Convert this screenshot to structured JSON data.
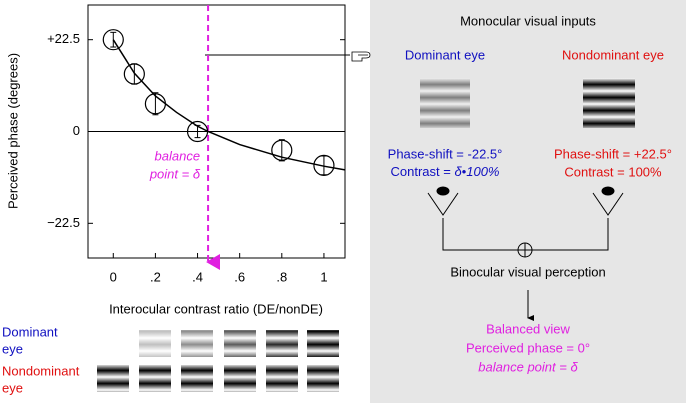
{
  "chart_data": {
    "type": "scatter",
    "ylabel": "Perceived phase (degrees)",
    "xlabel": "Interocular contrast ratio (DE/nonDE)",
    "x": [
      0,
      0.1,
      0.2,
      0.4,
      0.8,
      1
    ],
    "values": [
      22.5,
      14.1,
      6.8,
      0,
      -4.6,
      -8.3
    ],
    "errors": [
      1.8,
      2.5,
      2.7,
      1.5,
      2.6,
      2.3
    ],
    "fit": {
      "x": [
        0,
        0.1,
        0.2,
        0.3,
        0.4,
        0.45,
        0.6,
        0.8,
        1.0,
        1.1
      ],
      "values": [
        22.5,
        14.3,
        8.7,
        4.7,
        1.3,
        0,
        -3.2,
        -6.3,
        -8.5,
        -9.4
      ]
    },
    "balance_point": 0.45,
    "balance_label": [
      "balance",
      "point = δ"
    ],
    "xlim": [
      -0.12,
      1.1
    ],
    "ylim": [
      -31,
      31
    ],
    "xticks": [
      0,
      {
        "value": 0.2,
        "label": ".2"
      },
      {
        "value": 0.4,
        "label": ".4"
      },
      {
        "value": 0.6,
        "label": ".6"
      },
      {
        "value": 0.8,
        "label": ".8"
      },
      1
    ],
    "yticks": [
      {
        "value": 22.5,
        "label": "+22.5"
      },
      0,
      {
        "value": -22.5,
        "label": "−22.5"
      }
    ],
    "color": "#000000",
    "fit_color": "#000000",
    "balance_color": "#e020e0"
  },
  "stimuli": {
    "dominant": [
      "Dominant",
      "eye"
    ],
    "nondominant": [
      "Nondominant",
      "eye"
    ]
  },
  "diagram": {
    "title": "Monocular visual inputs",
    "dominant": {
      "name": "Dominant eye",
      "phase": "Phase-shift = -22.5°",
      "contrast_prefix": "Contrast = ",
      "contrast": "δ•100%"
    },
    "nondominant": {
      "name": "Nondominant eye",
      "phase": "Phase-shift = +22.5°",
      "contrast": "Contrast = 100%"
    },
    "binocular": "Binocular visual perception",
    "result": [
      "Balanced view",
      "Perceived phase = 0°",
      "balance point = δ"
    ]
  }
}
